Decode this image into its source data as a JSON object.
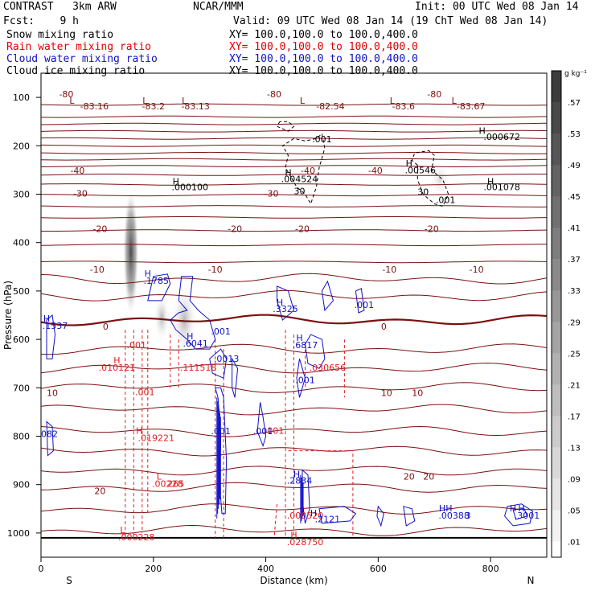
{
  "header": {
    "left_title": "CONTRAST   3km ARW",
    "center_title": "NCAR/MMM",
    "init": "Init: 00 UTC Wed 08 Jan 14",
    "fcst": "Fcst:    9 h",
    "valid": "Valid: 09 UTC Wed 08 Jan 14 (19 ChT Wed 08 Jan 14)",
    "fields": [
      {
        "name": "Snow mixing ratio",
        "color": "#000000",
        "xy": "XY= 100.0,100.0 to 100.0,400.0"
      },
      {
        "name": "Rain water mixing ratio",
        "color": "#e00000",
        "xy": "XY= 100.0,100.0 to 100.0,400.0"
      },
      {
        "name": "Cloud water mixing ratio",
        "color": "#1010c8",
        "xy": "XY= 100.0,100.0 to 100.0,400.0"
      },
      {
        "name": "Cloud ice mixing ratio",
        "color": "#000000",
        "xy": "XY= 100.0,100.0 to 100.0,400.0"
      }
    ]
  },
  "colorbar": {
    "unit": "g kg⁻¹",
    "ticks": [
      ".57",
      ".53",
      ".49",
      ".45",
      ".41",
      ".37",
      ".33",
      ".29",
      ".25",
      ".21",
      ".17",
      ".13",
      ".09",
      ".05",
      ".01"
    ]
  },
  "chart_data": {
    "type": "cross-section contour",
    "xlabel": "Distance (km)",
    "ylabel": "Pressure (hPa)",
    "xlim": [
      0,
      900
    ],
    "ylim": [
      1050,
      50
    ],
    "x_ticks": [
      "0",
      "200",
      "400",
      "600",
      "800"
    ],
    "y_ticks": [
      "100",
      "200",
      "300",
      "400",
      "500",
      "600",
      "700",
      "800",
      "900",
      "1000"
    ],
    "x_ends": {
      "left": "S",
      "right": "N"
    },
    "temperature_contours": [
      {
        "p": 115,
        "label": "-80"
      },
      {
        "p": 140,
        "label": ""
      },
      {
        "p": 155,
        "label": ""
      },
      {
        "p": 170,
        "label": ""
      },
      {
        "p": 185,
        "label": ""
      },
      {
        "p": 200,
        "label": ""
      },
      {
        "p": 215,
        "label": ""
      },
      {
        "p": 228,
        "label": ""
      },
      {
        "p": 242,
        "label": "-40"
      },
      {
        "p": 260,
        "label": ""
      },
      {
        "p": 280,
        "label": ""
      },
      {
        "p": 302,
        "label": "-30"
      },
      {
        "p": 325,
        "label": ""
      },
      {
        "p": 348,
        "label": "-20"
      },
      {
        "p": 375,
        "label": ""
      },
      {
        "p": 405,
        "label": ""
      },
      {
        "p": 440,
        "label": "-10"
      },
      {
        "p": 475,
        "label": ""
      },
      {
        "p": 510,
        "label": ""
      },
      {
        "p": 560,
        "label": "0"
      },
      {
        "p": 620,
        "label": ""
      },
      {
        "p": 660,
        "label": ""
      },
      {
        "p": 700,
        "label": "10"
      },
      {
        "p": 745,
        "label": ""
      },
      {
        "p": 790,
        "label": ""
      },
      {
        "p": 830,
        "label": ""
      },
      {
        "p": 870,
        "label": ""
      },
      {
        "p": 905,
        "label": "20"
      },
      {
        "p": 950,
        "label": ""
      },
      {
        "p": 995,
        "label": ""
      }
    ],
    "temp_labels": [
      {
        "x": 45,
        "p": 100,
        "text": "-80"
      },
      {
        "x": 415,
        "p": 100,
        "text": "-80"
      },
      {
        "x": 700,
        "p": 100,
        "text": "-80"
      },
      {
        "x": 55,
        "p": 113,
        "text": "L"
      },
      {
        "x": 185,
        "p": 113,
        "text": "L"
      },
      {
        "x": 255,
        "p": 113,
        "text": "L"
      },
      {
        "x": 465,
        "p": 113,
        "text": "L"
      },
      {
        "x": 625,
        "p": 113,
        "text": "L"
      },
      {
        "x": 735,
        "p": 113,
        "text": "L"
      },
      {
        "x": 95,
        "p": 125,
        "text": "-83.16"
      },
      {
        "x": 200,
        "p": 125,
        "text": "-83.2"
      },
      {
        "x": 275,
        "p": 125,
        "text": "-83.13"
      },
      {
        "x": 515,
        "p": 125,
        "text": "-82.54"
      },
      {
        "x": 645,
        "p": 125,
        "text": "-83.6"
      },
      {
        "x": 765,
        "p": 125,
        "text": "-83.67"
      },
      {
        "x": 65,
        "p": 258,
        "text": "-40"
      },
      {
        "x": 475,
        "p": 258,
        "text": "-40"
      },
      {
        "x": 595,
        "p": 258,
        "text": "-40"
      },
      {
        "x": 70,
        "p": 305,
        "text": "-30"
      },
      {
        "x": 410,
        "p": 305,
        "text": "-30"
      },
      {
        "x": 105,
        "p": 378,
        "text": "-20"
      },
      {
        "x": 345,
        "p": 378,
        "text": "-20"
      },
      {
        "x": 465,
        "p": 378,
        "text": "-20"
      },
      {
        "x": 695,
        "p": 378,
        "text": "-20"
      },
      {
        "x": 100,
        "p": 462,
        "text": "-10"
      },
      {
        "x": 310,
        "p": 462,
        "text": "-10"
      },
      {
        "x": 620,
        "p": 462,
        "text": "-10"
      },
      {
        "x": 775,
        "p": 462,
        "text": "-10"
      },
      {
        "x": 115,
        "p": 580,
        "text": "0"
      },
      {
        "x": 610,
        "p": 580,
        "text": "0"
      },
      {
        "x": 20,
        "p": 717,
        "text": "10"
      },
      {
        "x": 615,
        "p": 717,
        "text": "10"
      },
      {
        "x": 670,
        "p": 717,
        "text": "10"
      },
      {
        "x": 105,
        "p": 920,
        "text": "20"
      },
      {
        "x": 655,
        "p": 890,
        "text": "20"
      },
      {
        "x": 690,
        "p": 890,
        "text": "20"
      }
    ],
    "snow_labels": [
      {
        "x": 240,
        "p": 280,
        "text": "H"
      },
      {
        "x": 265,
        "p": 292,
        "text": ".000100"
      },
      {
        "x": 785,
        "p": 175,
        "text": "H"
      },
      {
        "x": 820,
        "p": 188,
        "text": ".000672"
      },
      {
        "x": 440,
        "p": 262,
        "text": "H"
      },
      {
        "x": 460,
        "p": 275,
        "text": ".004524"
      },
      {
        "x": 500,
        "p": 193,
        "text": ".001"
      },
      {
        "x": 655,
        "p": 243,
        "text": "H"
      },
      {
        "x": 675,
        "p": 257,
        "text": ".00546"
      },
      {
        "x": 800,
        "p": 280,
        "text": "H"
      },
      {
        "x": 820,
        "p": 292,
        "text": ".001078"
      },
      {
        "x": 720,
        "p": 318,
        "text": ".001"
      },
      {
        "x": 460,
        "p": 300,
        "text": "30"
      },
      {
        "x": 680,
        "p": 302,
        "text": "30"
      }
    ],
    "rain_labels": [
      {
        "x": 170,
        "p": 618,
        "text": ".001"
      },
      {
        "x": 135,
        "p": 650,
        "text": "H"
      },
      {
        "x": 135,
        "p": 665,
        "text": ".010121"
      },
      {
        "x": 185,
        "p": 715,
        "text": ".001"
      },
      {
        "x": 175,
        "p": 795,
        "text": "H"
      },
      {
        "x": 205,
        "p": 810,
        "text": ".019221"
      },
      {
        "x": 210,
        "p": 890,
        "text": "L"
      },
      {
        "x": 225,
        "p": 905,
        "text": ".00228"
      },
      {
        "x": 240,
        "p": 905,
        "text": "265"
      },
      {
        "x": 145,
        "p": 1000,
        "text": "L"
      },
      {
        "x": 170,
        "p": 1015,
        "text": ".000228"
      },
      {
        "x": 280,
        "p": 665,
        "text": ".111518"
      },
      {
        "x": 510,
        "p": 665,
        "text": ".030656"
      },
      {
        "x": 415,
        "p": 795,
        "text": ".001"
      },
      {
        "x": 450,
        "p": 1010,
        "text": "H"
      },
      {
        "x": 470,
        "p": 1025,
        "text": ".028750"
      },
      {
        "x": 470,
        "p": 970,
        "text": ".000520"
      }
    ],
    "cloud_labels": [
      {
        "x": 190,
        "p": 470,
        "text": "H"
      },
      {
        "x": 205,
        "p": 485,
        "text": ".1785"
      },
      {
        "x": 10,
        "p": 563,
        "text": "H"
      },
      {
        "x": 25,
        "p": 578,
        "text": ".1537"
      },
      {
        "x": 265,
        "p": 600,
        "text": "H"
      },
      {
        "x": 275,
        "p": 615,
        "text": ".6041"
      },
      {
        "x": 320,
        "p": 590,
        "text": ".001"
      },
      {
        "x": 330,
        "p": 646,
        "text": ".0013"
      },
      {
        "x": 425,
        "p": 530,
        "text": "H"
      },
      {
        "x": 435,
        "p": 543,
        "text": ".3325"
      },
      {
        "x": 575,
        "p": 535,
        "text": ".001"
      },
      {
        "x": 460,
        "p": 603,
        "text": "H"
      },
      {
        "x": 470,
        "p": 618,
        "text": ".6817"
      },
      {
        "x": 470,
        "p": 690,
        "text": ".001"
      },
      {
        "x": 320,
        "p": 796,
        "text": ".001"
      },
      {
        "x": 395,
        "p": 796,
        "text": ".001"
      },
      {
        "x": 15,
        "p": 802,
        "text": "082"
      },
      {
        "x": 455,
        "p": 885,
        "text": "H"
      },
      {
        "x": 460,
        "p": 898,
        "text": ".2834"
      },
      {
        "x": 510,
        "p": 978,
        "text": ".2121"
      },
      {
        "x": 485,
        "p": 965,
        "text": "H"
      },
      {
        "x": 720,
        "p": 955,
        "text": "HH"
      },
      {
        "x": 735,
        "p": 970,
        "text": ".00388"
      },
      {
        "x": 760,
        "p": 970,
        "text": "3"
      },
      {
        "x": 840,
        "p": 955,
        "text": "H"
      },
      {
        "x": 855,
        "p": 955,
        "text": "H"
      },
      {
        "x": 865,
        "p": 970,
        "text": ".3001"
      }
    ]
  }
}
